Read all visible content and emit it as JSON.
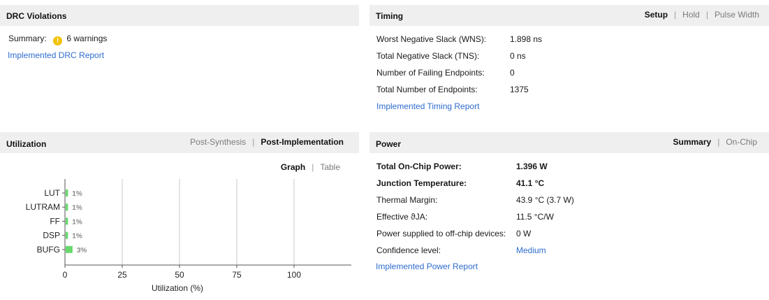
{
  "drc": {
    "title": "DRC Violations",
    "summary_label": "Summary:",
    "summary_value": "6 warnings",
    "warning_icon": "warning-icon",
    "report_link": "Implemented DRC Report"
  },
  "timing": {
    "title": "Timing",
    "tabs": [
      "Setup",
      "Hold",
      "Pulse Width"
    ],
    "active_tab": "Setup",
    "rows": [
      {
        "label": "Worst Negative Slack (WNS):",
        "value": "1.898 ns"
      },
      {
        "label": "Total Negative Slack (TNS):",
        "value": "0 ns"
      },
      {
        "label": "Number of Failing Endpoints:",
        "value": "0"
      },
      {
        "label": "Total Number of Endpoints:",
        "value": "1375"
      }
    ],
    "report_link": "Implemented Timing Report"
  },
  "utilization": {
    "title": "Utilization",
    "tabs": [
      "Post-Synthesis",
      "Post-Implementation"
    ],
    "active_tab": "Post-Implementation",
    "view_tabs": [
      "Graph",
      "Table"
    ],
    "active_view": "Graph"
  },
  "power": {
    "title": "Power",
    "tabs": [
      "Summary",
      "On-Chip"
    ],
    "active_tab": "Summary",
    "rows": [
      {
        "label": "Total On-Chip Power:",
        "value": "1.396 W",
        "bold": true
      },
      {
        "label": "Junction Temperature:",
        "value": "41.1 °C",
        "bold": true
      },
      {
        "label": "Thermal Margin:",
        "value": "43.9 °C (3.7 W)"
      },
      {
        "label": "Effective ϑJA:",
        "value": "11.5 °C/W"
      },
      {
        "label": "Power supplied to off-chip devices:",
        "value": "0 W"
      },
      {
        "label": "Confidence level:",
        "value": "Medium",
        "link": true
      }
    ],
    "report_link": "Implemented Power Report"
  },
  "chart_data": {
    "type": "bar",
    "orientation": "horizontal",
    "categories": [
      "LUT",
      "LUTRAM",
      "FF",
      "DSP",
      "BUFG"
    ],
    "values": [
      1,
      1,
      1,
      1,
      3
    ],
    "value_labels": [
      "1%",
      "1%",
      "1%",
      "1%",
      "3%"
    ],
    "xlabel": "Utilization (%)",
    "xlim": [
      0,
      125
    ],
    "xticks": [
      0,
      25,
      50,
      75,
      100
    ],
    "grid": "vertical",
    "bar_color": "#66d96b"
  }
}
